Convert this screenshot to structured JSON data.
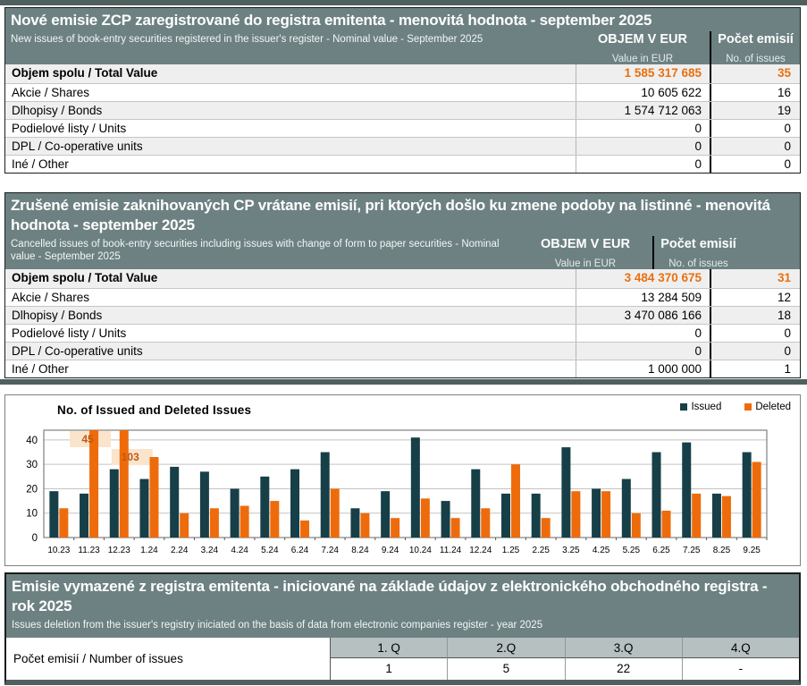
{
  "colors": {
    "slate_header": "#6d8182",
    "slate_band": "#4f605f",
    "orange": "#ee6b0c",
    "orange_text": "#e8700f",
    "teal": "#173f47",
    "row_alt": "#efefef",
    "quarter_header_bg": "#b6c0c0",
    "annotation_bg": "#fbe4cc",
    "annotation_text": "#bf5a11"
  },
  "table_new": {
    "title": "Nové emisie ZCP zaregistrované do registra emitenta - menovitá hodnota - september 2025",
    "subtitle": "New issues of book-entry securities registered in the issuer's register - Nominal value - September 2025",
    "col_value_label": "OBJEM V EUR",
    "col_value_sub": "Value in EUR",
    "col_count_label": "Počet emisií",
    "col_count_sub": "No. of issues",
    "rows": [
      {
        "label": "Objem spolu / Total Value",
        "value": "1 585 317 685",
        "count": "35",
        "emphasis": true
      },
      {
        "label": "Akcie / Shares",
        "value": "10 605 622",
        "count": "16",
        "emphasis": false
      },
      {
        "label": "Dlhopisy / Bonds",
        "value": "1 574 712 063",
        "count": "19",
        "emphasis": false
      },
      {
        "label": "Podielové listy / Units",
        "value": "0",
        "count": "0",
        "emphasis": false
      },
      {
        "label": "DPL / Co-operative units",
        "value": "0",
        "count": "0",
        "emphasis": false
      },
      {
        "label": "Iné / Other",
        "value": "0",
        "count": "0",
        "emphasis": false
      }
    ]
  },
  "table_cancelled": {
    "title": "Zrušené emisie zaknihovaných CP vrátane emisií, pri ktorých došlo ku zmene podoby na listinné - menovitá hodnota - september 2025",
    "subtitle": "Cancelled issues of book-entry securities including issues with change of form to paper securities - Nominal value - September 2025",
    "col_value_label": "OBJEM V EUR",
    "col_value_sub": "Value in EUR",
    "col_count_label": "Počet emisií",
    "col_count_sub": "No. of issues",
    "rows": [
      {
        "label": "Objem spolu / Total Value",
        "value": "3 484 370 675",
        "count": "31",
        "emphasis": true
      },
      {
        "label": "Akcie / Shares",
        "value": "13 284 509",
        "count": "12",
        "emphasis": false
      },
      {
        "label": "Dlhopisy / Bonds",
        "value": "3 470 086 166",
        "count": "18",
        "emphasis": false
      },
      {
        "label": "Podielové listy / Units",
        "value": "0",
        "count": "0",
        "emphasis": false
      },
      {
        "label": "DPL / Co-operative units",
        "value": "0",
        "count": "0",
        "emphasis": false
      },
      {
        "label": "Iné / Other",
        "value": "1 000 000",
        "count": "1",
        "emphasis": false
      }
    ]
  },
  "chart_data": {
    "type": "bar",
    "title": "No. of Issued and Deleted Issues",
    "categories": [
      "10.23",
      "11.23",
      "12.23",
      "1.24",
      "2.24",
      "3.24",
      "4.24",
      "5.24",
      "6.24",
      "7.24",
      "8.24",
      "9.24",
      "10.24",
      "11.24",
      "12.24",
      "1.25",
      "2.25",
      "3.25",
      "4.25",
      "5.25",
      "6.25",
      "7.25",
      "8.25",
      "9.25"
    ],
    "series": [
      {
        "name": "Issued",
        "color": "#173f47",
        "values": [
          19,
          18,
          28,
          24,
          29,
          27,
          20,
          25,
          28,
          35,
          12,
          19,
          41,
          15,
          28,
          18,
          18,
          37,
          20,
          24,
          35,
          39,
          18,
          35
        ]
      },
      {
        "name": "Deleted",
        "color": "#ee6b0c",
        "values": [
          12,
          45,
          103,
          33,
          10,
          12,
          13,
          15,
          7,
          20,
          10,
          8,
          16,
          8,
          12,
          30,
          8,
          19,
          19,
          10,
          11,
          18,
          17,
          31
        ]
      }
    ],
    "ylim": [
      0,
      44
    ],
    "yticks": [
      0,
      10,
      20,
      30,
      40
    ],
    "grid": true,
    "legend_position": "top-right",
    "clip_annotations": [
      {
        "category": "11.23",
        "series": "Deleted",
        "label": "45"
      },
      {
        "category": "12.23",
        "series": "Deleted",
        "label": "103"
      }
    ]
  },
  "table_deleted": {
    "title": "Emisie vymazené z registra emitenta - iniciované na základe údajov z elektronického obchodného registra - rok 2025",
    "subtitle": "Issues deletion from the issuer's registry iniciated on the basis of data from electronic companies register - year 2025",
    "row_label": "Počet emisií / Number of issues",
    "columns": [
      "1. Q",
      "2.Q",
      "3.Q",
      "4.Q"
    ],
    "values": [
      "1",
      "5",
      "22",
      "-"
    ]
  }
}
